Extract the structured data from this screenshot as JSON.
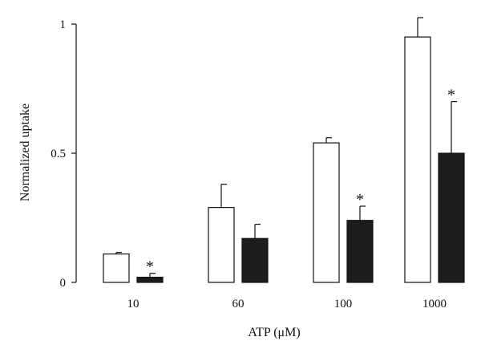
{
  "chart_data": {
    "type": "bar",
    "categories": [
      "10",
      "60",
      "100",
      "1000"
    ],
    "series": [
      {
        "fill": "#ffffff",
        "values": [
          0.11,
          0.29,
          0.54,
          0.95
        ],
        "errors": [
          0.006,
          0.09,
          0.02,
          0.075
        ],
        "significance": [
          "",
          "",
          "",
          ""
        ]
      },
      {
        "fill": "#1c1c1c",
        "values": [
          0.02,
          0.17,
          0.24,
          0.5
        ],
        "errors": [
          0.015,
          0.055,
          0.055,
          0.2
        ],
        "significance": [
          "*",
          "",
          "*",
          "*"
        ]
      }
    ],
    "ylim": [
      0,
      1
    ],
    "yticks": [
      {
        "value": 0,
        "label": "0"
      },
      {
        "value": 0.5,
        "label": "0.5"
      },
      {
        "value": 1,
        "label": "1"
      }
    ],
    "ylabel": "Normalized uptake",
    "xlabel": "ATP (μM)",
    "grid": false
  }
}
